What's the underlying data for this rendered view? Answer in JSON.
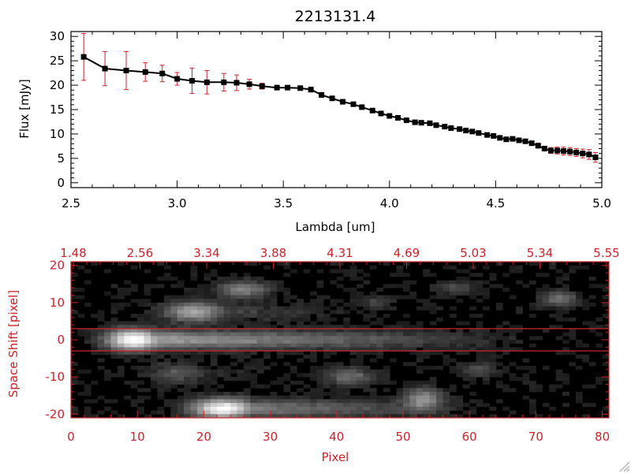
{
  "chart_data": [
    {
      "type": "line",
      "title": "2213131.4",
      "xlabel": "Lambda [um]",
      "ylabel": "Flux [mJy]",
      "xlim": [
        2.5,
        5.0
      ],
      "ylim": [
        -1,
        31
      ],
      "x_ticks": [
        "2.5",
        "3.0",
        "3.5",
        "4.0",
        "4.5",
        "5.0"
      ],
      "y_ticks": [
        "0",
        "5",
        "10",
        "15",
        "20",
        "25",
        "30"
      ],
      "colors": {
        "line": "#000000",
        "marker": "#000000",
        "errorbar": "#c8242b"
      },
      "series": [
        {
          "x": [
            2.56,
            2.66,
            2.76,
            2.85,
            2.93,
            3.0,
            3.07,
            3.14,
            3.22,
            3.28,
            3.34,
            3.4,
            3.47,
            3.52,
            3.58,
            3.63,
            3.68,
            3.73,
            3.78,
            3.83,
            3.87,
            3.92,
            3.96,
            4.0,
            4.04,
            4.08,
            4.12,
            4.15,
            4.19,
            4.22,
            4.26,
            4.29,
            4.33,
            4.36,
            4.39,
            4.42,
            4.46,
            4.49,
            4.52,
            4.55,
            4.58,
            4.61,
            4.64,
            4.67,
            4.7,
            4.73,
            4.76,
            4.79,
            4.82,
            4.85,
            4.88,
            4.91,
            4.94,
            4.97
          ],
          "y": [
            25.8,
            23.4,
            23.0,
            22.7,
            22.4,
            21.3,
            20.9,
            20.6,
            20.6,
            20.5,
            20.2,
            19.8,
            19.5,
            19.5,
            19.4,
            19.1,
            18.0,
            17.3,
            16.6,
            16.1,
            15.5,
            14.8,
            14.2,
            13.7,
            13.3,
            12.8,
            12.4,
            12.3,
            12.2,
            11.8,
            11.5,
            11.2,
            11.0,
            10.7,
            10.5,
            10.2,
            9.8,
            9.6,
            9.2,
            8.9,
            9.0,
            8.7,
            8.5,
            8.1,
            7.6,
            7.0,
            6.6,
            6.6,
            6.5,
            6.4,
            6.2,
            6.0,
            5.8,
            5.2
          ],
          "yerr": [
            4.8,
            3.5,
            3.9,
            1.9,
            1.7,
            1.3,
            2.6,
            2.4,
            1.8,
            1.6,
            1.0,
            0.6,
            0.4,
            0.4,
            0.4,
            0.5,
            0.5,
            0.4,
            0.4,
            0.4,
            0.4,
            0.4,
            0.4,
            0.4,
            0.4,
            0.4,
            0.4,
            0.4,
            0.4,
            0.4,
            0.4,
            0.4,
            0.4,
            0.4,
            0.4,
            0.4,
            0.4,
            0.4,
            0.4,
            0.4,
            0.4,
            0.4,
            0.4,
            0.4,
            0.5,
            0.5,
            0.6,
            0.7,
            0.8,
            0.8,
            0.8,
            0.9,
            1.0,
            1.0
          ]
        }
      ]
    },
    {
      "type": "heatmap",
      "xlabel": "Pixel",
      "ylabel": "Space Shift [pixel]",
      "xlim": [
        0,
        81
      ],
      "ylim": [
        -21,
        21
      ],
      "x_ticks": [
        "0",
        "10",
        "20",
        "30",
        "40",
        "50",
        "60",
        "70",
        "80"
      ],
      "y_ticks": [
        "-20",
        "-10",
        "0",
        "10",
        "20"
      ],
      "top_ticks": [
        "1.48",
        "2.56",
        "3.34",
        "3.88",
        "4.31",
        "4.69",
        "5.03",
        "5.34",
        "5.55"
      ],
      "aperture_lines": [
        3,
        -3
      ],
      "colormap": "grayscale",
      "colors": {
        "axes": "#c8242b",
        "lines": "#c8242b"
      },
      "sources": [
        {
          "x": 9.5,
          "y": 0,
          "peak": 1.0,
          "sx": 2.8,
          "sy": 1.9,
          "trail_to": 70,
          "trail_level": 0.55
        },
        {
          "x": 23,
          "y": -18.5,
          "peak": 0.95,
          "sx": 3.2,
          "sy": 1.8,
          "trail_to": 62,
          "trail_level": 0.42
        },
        {
          "x": 18.5,
          "y": 7.5,
          "peak": 0.55,
          "sx": 3.0,
          "sy": 1.8,
          "trail_to": 44,
          "trail_level": 0.18
        },
        {
          "x": 26,
          "y": 13.5,
          "peak": 0.4,
          "sx": 2.5,
          "sy": 1.6,
          "trail_to": 32,
          "trail_level": 0.1
        },
        {
          "x": 42,
          "y": -10,
          "peak": 0.32,
          "sx": 2.5,
          "sy": 1.6,
          "trail_to": 46,
          "trail_level": 0.08
        },
        {
          "x": 53,
          "y": -16,
          "peak": 0.45,
          "sx": 2.0,
          "sy": 2.0,
          "trail_to": 58,
          "trail_level": 0.15
        },
        {
          "x": 73.5,
          "y": 11,
          "peak": 0.32,
          "sx": 1.8,
          "sy": 1.5,
          "trail_to": 75,
          "trail_level": 0.0
        },
        {
          "x": 61.5,
          "y": -8,
          "peak": 0.22,
          "sx": 1.6,
          "sy": 1.4,
          "trail_to": 63,
          "trail_level": 0.0
        },
        {
          "x": 58,
          "y": 14,
          "peak": 0.18,
          "sx": 2.2,
          "sy": 1.2,
          "trail_to": 60,
          "trail_level": 0.0
        },
        {
          "x": 46,
          "y": 10,
          "peak": 0.15,
          "sx": 1.8,
          "sy": 1.2,
          "trail_to": 48,
          "trail_level": 0.0
        },
        {
          "x": 16,
          "y": -9,
          "peak": 0.22,
          "sx": 3.0,
          "sy": 1.8,
          "trail_to": 30,
          "trail_level": 0.1
        }
      ]
    }
  ]
}
